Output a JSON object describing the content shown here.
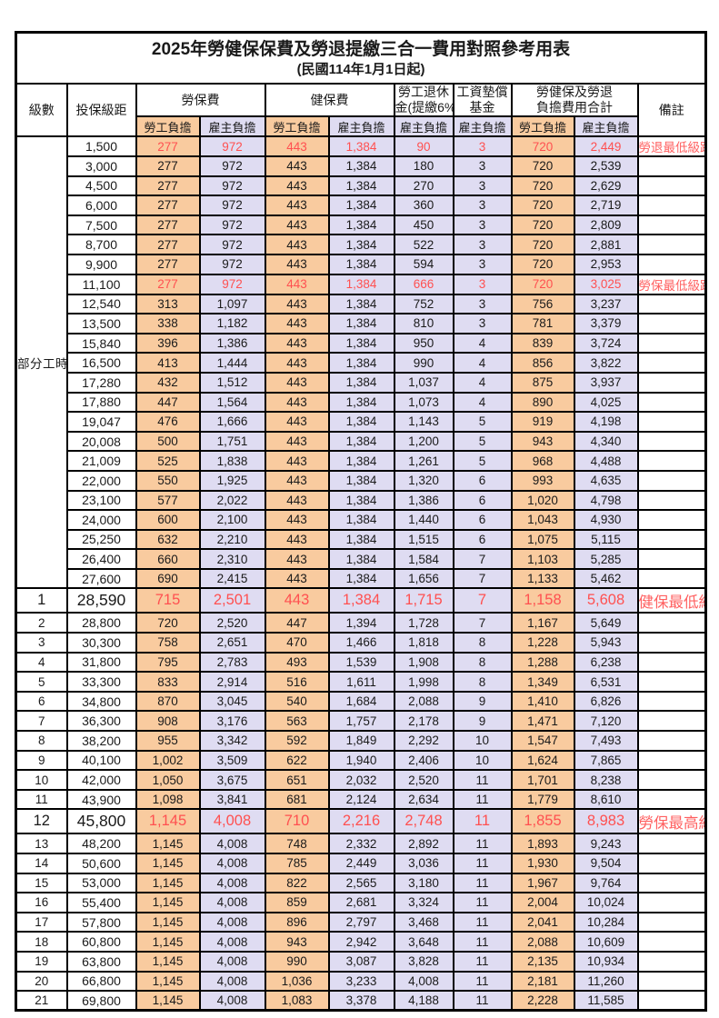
{
  "title": "2025年勞健保保費及勞退提繳三合一費用對照參考用表",
  "subtitle": "(民國114年1月1日起)",
  "header": {
    "level": "級數",
    "bracket": "投保級距",
    "labor_insurance": "勞保費",
    "health_insurance": "健保費",
    "pension_line1": "勞工退休",
    "pension_line2": "金(提繳6%)",
    "wage_fund_line1": "工資墊償",
    "wage_fund_line2": "基金",
    "total_line1": "勞健保及勞退",
    "total_line2": "負擔費用合計",
    "remark": "備註",
    "employee_label": "勞工負擔",
    "employer_label": "雇主負擔",
    "part_time_label": "部分工時"
  },
  "colors": {
    "employee_fill": "#F9CB9F",
    "employer_fill": "#DFDCF2",
    "highlight_red": "#FF5050",
    "remark_red": "#FF6060"
  },
  "part_time_span": 23,
  "row_fields": [
    "level",
    "bracket",
    "labor_employee",
    "labor_employer",
    "health_employee",
    "health_employer",
    "pension_employer",
    "fund_employer",
    "total_employee",
    "total_employer",
    "remark",
    "flags"
  ],
  "rows": [
    [
      "",
      "1,500",
      "277",
      "972",
      "443",
      "1,384",
      "90",
      "3",
      "720",
      "2,449",
      "勞退最低級距",
      "red"
    ],
    [
      "",
      "3,000",
      "277",
      "972",
      "443",
      "1,384",
      "180",
      "3",
      "720",
      "2,539",
      "",
      ""
    ],
    [
      "",
      "4,500",
      "277",
      "972",
      "443",
      "1,384",
      "270",
      "3",
      "720",
      "2,629",
      "",
      ""
    ],
    [
      "",
      "6,000",
      "277",
      "972",
      "443",
      "1,384",
      "360",
      "3",
      "720",
      "2,719",
      "",
      ""
    ],
    [
      "",
      "7,500",
      "277",
      "972",
      "443",
      "1,384",
      "450",
      "3",
      "720",
      "2,809",
      "",
      ""
    ],
    [
      "",
      "8,700",
      "277",
      "972",
      "443",
      "1,384",
      "522",
      "3",
      "720",
      "2,881",
      "",
      ""
    ],
    [
      "",
      "9,900",
      "277",
      "972",
      "443",
      "1,384",
      "594",
      "3",
      "720",
      "2,953",
      "",
      ""
    ],
    [
      "",
      "11,100",
      "277",
      "972",
      "443",
      "1,384",
      "666",
      "3",
      "720",
      "3,025",
      "勞保最低級距",
      "red"
    ],
    [
      "",
      "12,540",
      "313",
      "1,097",
      "443",
      "1,384",
      "752",
      "3",
      "756",
      "3,237",
      "",
      ""
    ],
    [
      "",
      "13,500",
      "338",
      "1,182",
      "443",
      "1,384",
      "810",
      "3",
      "781",
      "3,379",
      "",
      ""
    ],
    [
      "",
      "15,840",
      "396",
      "1,386",
      "443",
      "1,384",
      "950",
      "4",
      "839",
      "3,724",
      "",
      ""
    ],
    [
      "",
      "16,500",
      "413",
      "1,444",
      "443",
      "1,384",
      "990",
      "4",
      "856",
      "3,822",
      "",
      ""
    ],
    [
      "",
      "17,280",
      "432",
      "1,512",
      "443",
      "1,384",
      "1,037",
      "4",
      "875",
      "3,937",
      "",
      ""
    ],
    [
      "",
      "17,880",
      "447",
      "1,564",
      "443",
      "1,384",
      "1,073",
      "4",
      "890",
      "4,025",
      "",
      ""
    ],
    [
      "",
      "19,047",
      "476",
      "1,666",
      "443",
      "1,384",
      "1,143",
      "5",
      "919",
      "4,198",
      "",
      ""
    ],
    [
      "",
      "20,008",
      "500",
      "1,751",
      "443",
      "1,384",
      "1,200",
      "5",
      "943",
      "4,340",
      "",
      ""
    ],
    [
      "",
      "21,009",
      "525",
      "1,838",
      "443",
      "1,384",
      "1,261",
      "5",
      "968",
      "4,488",
      "",
      ""
    ],
    [
      "",
      "22,000",
      "550",
      "1,925",
      "443",
      "1,384",
      "1,320",
      "6",
      "993",
      "4,635",
      "",
      ""
    ],
    [
      "",
      "23,100",
      "577",
      "2,022",
      "443",
      "1,384",
      "1,386",
      "6",
      "1,020",
      "4,798",
      "",
      ""
    ],
    [
      "",
      "24,000",
      "600",
      "2,100",
      "443",
      "1,384",
      "1,440",
      "6",
      "1,043",
      "4,930",
      "",
      ""
    ],
    [
      "",
      "25,250",
      "632",
      "2,210",
      "443",
      "1,384",
      "1,515",
      "6",
      "1,075",
      "5,115",
      "",
      ""
    ],
    [
      "",
      "26,400",
      "660",
      "2,310",
      "443",
      "1,384",
      "1,584",
      "7",
      "1,103",
      "5,285",
      "",
      ""
    ],
    [
      "",
      "27,600",
      "690",
      "2,415",
      "443",
      "1,384",
      "1,656",
      "7",
      "1,133",
      "5,462",
      "",
      ""
    ],
    [
      "1",
      "28,590",
      "715",
      "2,501",
      "443",
      "1,384",
      "1,715",
      "7",
      "1,158",
      "5,608",
      "健保最低級距",
      "red big"
    ],
    [
      "2",
      "28,800",
      "720",
      "2,520",
      "447",
      "1,394",
      "1,728",
      "7",
      "1,167",
      "5,649",
      "",
      ""
    ],
    [
      "3",
      "30,300",
      "758",
      "2,651",
      "470",
      "1,466",
      "1,818",
      "8",
      "1,228",
      "5,943",
      "",
      ""
    ],
    [
      "4",
      "31,800",
      "795",
      "2,783",
      "493",
      "1,539",
      "1,908",
      "8",
      "1,288",
      "6,238",
      "",
      ""
    ],
    [
      "5",
      "33,300",
      "833",
      "2,914",
      "516",
      "1,611",
      "1,998",
      "8",
      "1,349",
      "6,531",
      "",
      ""
    ],
    [
      "6",
      "34,800",
      "870",
      "3,045",
      "540",
      "1,684",
      "2,088",
      "9",
      "1,410",
      "6,826",
      "",
      ""
    ],
    [
      "7",
      "36,300",
      "908",
      "3,176",
      "563",
      "1,757",
      "2,178",
      "9",
      "1,471",
      "7,120",
      "",
      ""
    ],
    [
      "8",
      "38,200",
      "955",
      "3,342",
      "592",
      "1,849",
      "2,292",
      "10",
      "1,547",
      "7,493",
      "",
      ""
    ],
    [
      "9",
      "40,100",
      "1,002",
      "3,509",
      "622",
      "1,940",
      "2,406",
      "10",
      "1,624",
      "7,865",
      "",
      ""
    ],
    [
      "10",
      "42,000",
      "1,050",
      "3,675",
      "651",
      "2,032",
      "2,520",
      "11",
      "1,701",
      "8,238",
      "",
      ""
    ],
    [
      "11",
      "43,900",
      "1,098",
      "3,841",
      "681",
      "2,124",
      "2,634",
      "11",
      "1,779",
      "8,610",
      "",
      ""
    ],
    [
      "12",
      "45,800",
      "1,145",
      "4,008",
      "710",
      "2,216",
      "2,748",
      "11",
      "1,855",
      "8,983",
      "勞保最高級距",
      "red big"
    ],
    [
      "13",
      "48,200",
      "1,145",
      "4,008",
      "748",
      "2,332",
      "2,892",
      "11",
      "1,893",
      "9,243",
      "",
      ""
    ],
    [
      "14",
      "50,600",
      "1,145",
      "4,008",
      "785",
      "2,449",
      "3,036",
      "11",
      "1,930",
      "9,504",
      "",
      ""
    ],
    [
      "15",
      "53,000",
      "1,145",
      "4,008",
      "822",
      "2,565",
      "3,180",
      "11",
      "1,967",
      "9,764",
      "",
      ""
    ],
    [
      "16",
      "55,400",
      "1,145",
      "4,008",
      "859",
      "2,681",
      "3,324",
      "11",
      "2,004",
      "10,024",
      "",
      ""
    ],
    [
      "17",
      "57,800",
      "1,145",
      "4,008",
      "896",
      "2,797",
      "3,468",
      "11",
      "2,041",
      "10,284",
      "",
      ""
    ],
    [
      "18",
      "60,800",
      "1,145",
      "4,008",
      "943",
      "2,942",
      "3,648",
      "11",
      "2,088",
      "10,609",
      "",
      ""
    ],
    [
      "19",
      "63,800",
      "1,145",
      "4,008",
      "990",
      "3,087",
      "3,828",
      "11",
      "2,135",
      "10,934",
      "",
      ""
    ],
    [
      "20",
      "66,800",
      "1,145",
      "4,008",
      "1,036",
      "3,233",
      "4,008",
      "11",
      "2,181",
      "11,260",
      "",
      ""
    ],
    [
      "21",
      "69,800",
      "1,145",
      "4,008",
      "1,083",
      "3,378",
      "4,188",
      "11",
      "2,228",
      "11,585",
      "",
      ""
    ]
  ]
}
